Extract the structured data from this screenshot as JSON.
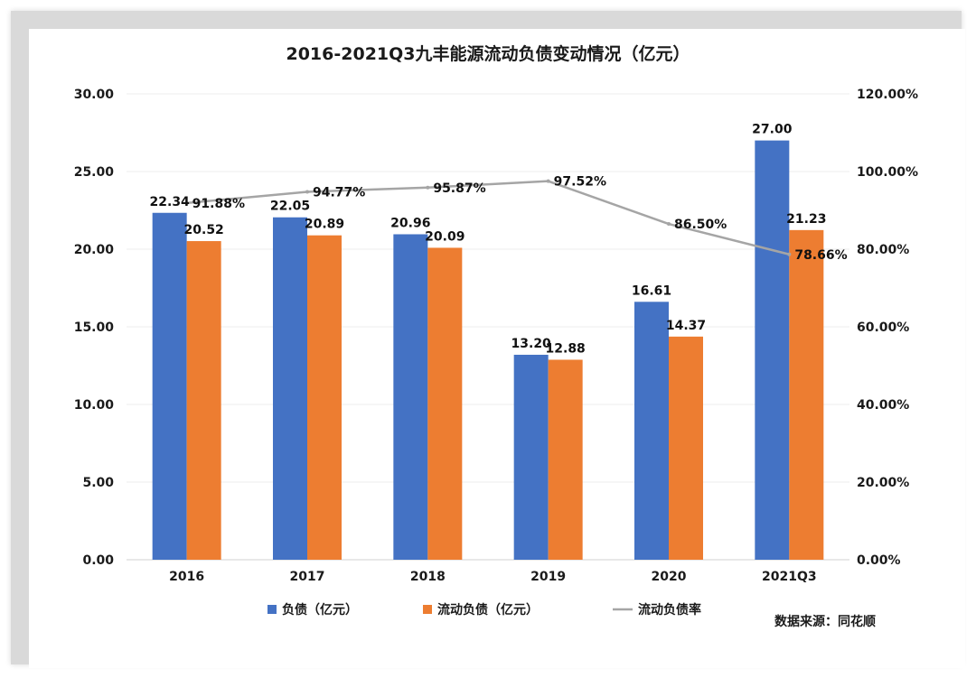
{
  "chart_data": {
    "type": "bar",
    "title": "2016-2021Q3九丰能源流动负债变动情况（亿元）",
    "categories": [
      "2016",
      "2017",
      "2018",
      "2019",
      "2020",
      "2021Q3"
    ],
    "series": [
      {
        "name": "负债（亿元）",
        "kind": "bar",
        "axis": "left",
        "color": "#4472C4",
        "values": [
          22.34,
          22.05,
          20.96,
          13.2,
          16.61,
          27.0
        ],
        "labels": [
          "22.34",
          "22.05",
          "20.96",
          "13.20",
          "16.61",
          "27.00"
        ]
      },
      {
        "name": "流动负债（亿元）",
        "kind": "bar",
        "axis": "left",
        "color": "#ED7D31",
        "values": [
          20.52,
          20.89,
          20.09,
          12.88,
          14.37,
          21.23
        ],
        "labels": [
          "20.52",
          "20.89",
          "20.09",
          "12.88",
          "14.37",
          "21.23"
        ]
      },
      {
        "name": "流动负债率",
        "kind": "line",
        "axis": "right",
        "color": "#A5A5A5",
        "values": [
          91.88,
          94.77,
          95.87,
          97.52,
          86.5,
          78.66
        ],
        "labels": [
          "91.88%",
          "94.77%",
          "95.87%",
          "97.52%",
          "86.50%",
          "78.66%"
        ]
      }
    ],
    "y_left": {
      "min": 0,
      "max": 30,
      "ticks": [
        "0.00",
        "5.00",
        "10.00",
        "15.00",
        "20.00",
        "25.00",
        "30.00"
      ]
    },
    "y_right": {
      "min": 0,
      "max": 120,
      "ticks": [
        "0.00%",
        "20.00%",
        "40.00%",
        "60.00%",
        "80.00%",
        "100.00%",
        "120.00%"
      ]
    },
    "grid": true,
    "legend": "bottom"
  },
  "source_note": "数据来源：同花顺"
}
